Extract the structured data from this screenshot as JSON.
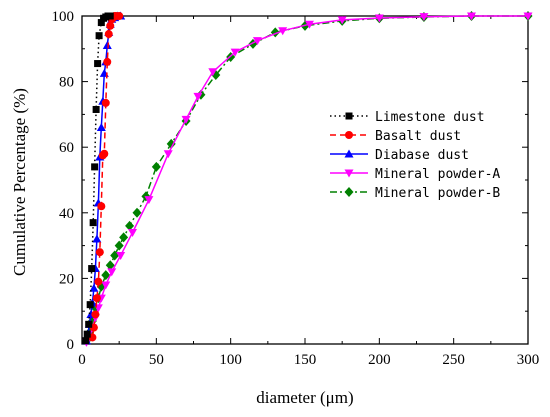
{
  "chart_data": {
    "type": "line",
    "xlabel": "diameter (μm)",
    "ylabel": "Cumulative Percentage (%)",
    "xlim": [
      0,
      300
    ],
    "ylim": [
      0,
      100
    ],
    "xticks": [
      0,
      50,
      100,
      150,
      200,
      250,
      300
    ],
    "yticks": [
      0,
      20,
      40,
      60,
      80,
      100
    ],
    "grid": false,
    "legend_position": "center-right",
    "series": [
      {
        "name": "Limestone dust",
        "color": "#000000",
        "dash": "dotted",
        "marker": "square",
        "x": [
          2.5,
          3.5,
          4.5,
          5.5,
          6.5,
          7.5,
          8.5,
          9.5,
          10.5,
          11.5,
          13,
          14.5,
          16,
          17.5,
          19
        ],
        "y": [
          1,
          3,
          6,
          12,
          23,
          37,
          54,
          71.5,
          85.5,
          94,
          98,
          99.3,
          99.7,
          100,
          100
        ]
      },
      {
        "name": "Basalt dust",
        "color": "#ff0000",
        "dash": "dashed",
        "marker": "circle",
        "x": [
          7,
          8,
          9,
          10,
          11,
          12,
          13,
          14,
          15,
          16,
          17,
          18,
          19,
          20,
          21,
          22,
          23,
          25
        ],
        "y": [
          2,
          5,
          9,
          14,
          19,
          28,
          42,
          57.5,
          58,
          73.5,
          86,
          94.5,
          97,
          99,
          99.5,
          100,
          100,
          100
        ]
      },
      {
        "name": "Diabase dust",
        "color": "#0000ff",
        "dash": "solid",
        "marker": "triangle-up",
        "x": [
          3,
          4,
          5,
          6,
          7,
          8,
          9,
          10,
          11,
          12,
          13,
          14,
          15,
          16,
          17,
          18,
          19,
          20,
          22,
          24,
          26
        ],
        "y": [
          1,
          3,
          6,
          9,
          12.5,
          17,
          23,
          32,
          43,
          57,
          66,
          74,
          82.5,
          86,
          91,
          95,
          97.5,
          99,
          99.5,
          100,
          100
        ]
      },
      {
        "name": "Mineral powder-A",
        "color": "#ff00ff",
        "dash": "solid",
        "marker": "triangle-down",
        "x": [
          3,
          5,
          7,
          9,
          11,
          13,
          16,
          20,
          26,
          34,
          45,
          58,
          70,
          78,
          88,
          103,
          118,
          135,
          153,
          175,
          200,
          230,
          262,
          300
        ],
        "y": [
          0.5,
          2,
          5,
          8,
          11,
          14,
          18,
          22,
          27,
          34,
          44,
          58,
          68.5,
          75.5,
          83,
          89,
          92.5,
          95.5,
          97.5,
          98.8,
          99.4,
          99.8,
          100,
          100
        ]
      },
      {
        "name": "Mineral powder-B",
        "color": "#008000",
        "dash": "dashdot",
        "marker": "diamond",
        "x": [
          3,
          5,
          7,
          9,
          11,
          13,
          16,
          19,
          22,
          25,
          28,
          32,
          37,
          43,
          50,
          60,
          70,
          80,
          90,
          100,
          115,
          130,
          150,
          175,
          200,
          230,
          262,
          300
        ],
        "y": [
          1,
          3.5,
          7,
          11,
          14,
          17.5,
          21,
          24,
          27,
          30,
          32.5,
          36,
          40,
          45,
          54,
          61,
          68,
          76,
          82,
          87.5,
          91.5,
          95,
          97,
          98.5,
          99.3,
          99.7,
          100,
          100
        ]
      }
    ]
  }
}
